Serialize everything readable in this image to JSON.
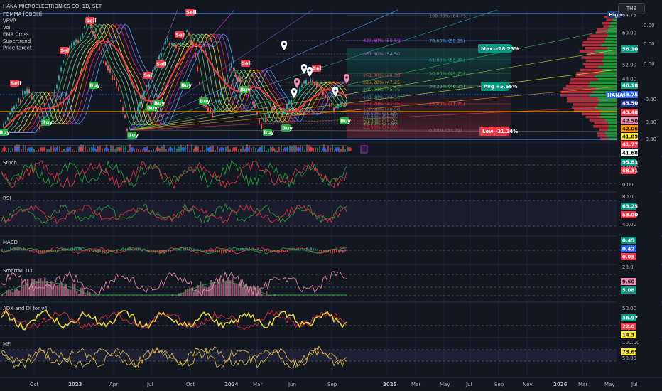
{
  "header": {
    "symbol": "HANA MICROELECTRONICS CO, 1D, SET",
    "currency": "THB",
    "indicators": [
      "FGMMA [OBDH]",
      "VRVP",
      "Vol",
      "EMA Cross",
      "Supertrend",
      "Price target"
    ]
  },
  "chart_data": [
    {
      "type": "line",
      "title": "HANA MICROELECTRONICS CO, 1D, SET",
      "x_labels": [
        "Oct",
        "2023",
        "Apr",
        "Jul",
        "Oct",
        "2024",
        "Mar",
        "Jun",
        "Sep",
        "2025",
        "Mar",
        "May",
        "Jul",
        "Sep",
        "Nov",
        "2026",
        "Mar",
        "May",
        "Jul"
      ],
      "price_axis": [
        "64.75",
        "60.00",
        "56.10",
        "52.00",
        "48.00",
        "46.18",
        "43.75",
        "43.50",
        "43.48",
        "42.50",
        "42.06",
        "41.89",
        "41.77",
        "41.68"
      ],
      "right_axis": [
        "0.00",
        "0.00",
        "0.00",
        "-0.00",
        "-0.00",
        "-0.00"
      ],
      "highlight": {
        "High": "High",
        "HANA": "HANA"
      },
      "price_tags": [
        {
          "text": "56.10",
          "color": "#089981"
        },
        {
          "text": "46.18",
          "color": "#089981"
        },
        {
          "text": "43.75",
          "color": "#2962ff"
        },
        {
          "text": "43.50",
          "color": "#1e3a8a"
        },
        {
          "text": "43.48",
          "color": "#f23645"
        },
        {
          "text": "42.50",
          "color": "#f48fb1"
        },
        {
          "text": "42.06",
          "color": "#ff9800"
        },
        {
          "text": "41.89",
          "color": "#ffeb3b"
        },
        {
          "text": "41.77",
          "color": "#f23645"
        },
        {
          "text": "41.68",
          "color": "#ffffff"
        }
      ],
      "fib_levels": [
        {
          "label": "100.00% (64.75)",
          "color": "#787b86"
        },
        {
          "label": "78.60% (58.25)",
          "color": "#5b9cf6"
        },
        {
          "label": "61.80% (53.25)",
          "color": "#26a69a"
        },
        {
          "label": "50.00% (49.75)",
          "color": "#4caf50"
        },
        {
          "label": "38.20% (46.25)",
          "color": "#81c784"
        },
        {
          "label": "23.60% (41.75)",
          "color": "#f23645"
        },
        {
          "label": "0.00% (34.75)",
          "color": "#787b86"
        }
      ],
      "fib_ext": [
        {
          "label": "423.60% (59.50)",
          "color": "#e040fb"
        },
        {
          "label": "361.80% (54.50)",
          "color": "#ba68c8"
        },
        {
          "label": "261.80% (49.50)",
          "color": "#f23645"
        },
        {
          "label": "227.20% (47.25)",
          "color": "#ff9800"
        },
        {
          "label": "200.00% (45.75)",
          "color": "#4caf50"
        },
        {
          "label": "161.80% (43.50)",
          "color": "#26a69a"
        },
        {
          "label": "127.20% (41.75)",
          "color": "#f23645"
        },
        {
          "label": "100.00% (40.50)",
          "color": "#787b86"
        },
        {
          "label": "78.60% (39.50)",
          "color": "#5b9cf6"
        },
        {
          "label": "61.80% (38.75)",
          "color": "#26a69a"
        },
        {
          "label": "50.00% (38.25)",
          "color": "#4caf50"
        },
        {
          "label": "38.20% (37.50)",
          "color": "#81c784"
        },
        {
          "label": "23.60% (36.50)",
          "color": "#f23645"
        }
      ],
      "targets": {
        "max": "Max +28.23%",
        "avg": "Avg +5.56%",
        "low": "Low -21.14%"
      },
      "signals": [
        "Sell",
        "Buy"
      ]
    },
    {
      "type": "line",
      "title": "Stoch",
      "axis": [
        "100.00",
        "0.00"
      ],
      "tags": [
        {
          "text": "95.83",
          "color": "#089981"
        },
        {
          "text": "68.31",
          "color": "#f23645"
        }
      ]
    },
    {
      "type": "line",
      "title": "RSI",
      "axis": [
        "80.00",
        "40.00"
      ],
      "tags": [
        {
          "text": "63.25",
          "color": "#089981"
        },
        {
          "text": "53.00",
          "color": "#f23645"
        }
      ]
    },
    {
      "type": "bar",
      "title": "MACD",
      "tags": [
        {
          "text": "0.45",
          "color": "#089981"
        },
        {
          "text": "0.42",
          "color": "#2962ff"
        },
        {
          "text": "0.03",
          "color": "#f23645"
        }
      ]
    },
    {
      "type": "area",
      "title": "SmartMCDX",
      "axis": [
        "20.0"
      ],
      "tags": [
        {
          "text": "9.60",
          "color": "#f48fb1"
        },
        {
          "text": "5.08",
          "color": "#089981"
        }
      ]
    },
    {
      "type": "line",
      "title": "ADX and DI for v4",
      "axis": [
        "50.00"
      ],
      "tags": [
        {
          "text": "36.97",
          "color": "#089981"
        },
        {
          "text": "22.0",
          "color": "#f23645"
        },
        {
          "text": "14.3",
          "color": "#ffeb3b"
        }
      ]
    },
    {
      "type": "line",
      "title": "MFI",
      "axis": [
        "100.00",
        "50.00"
      ],
      "tags": [
        {
          "text": "73.69",
          "color": "#ffeb3b"
        }
      ]
    }
  ],
  "colors": {
    "background": "#131722",
    "grid": "#1e222d",
    "up": "#089981",
    "down": "#f23645"
  }
}
